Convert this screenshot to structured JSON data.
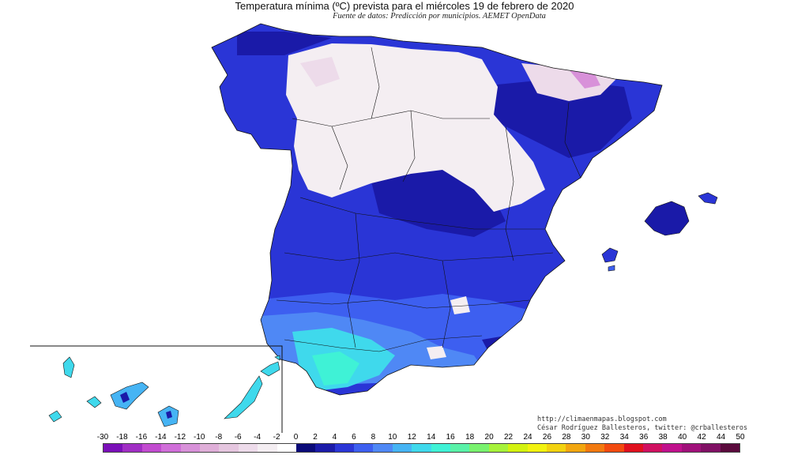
{
  "map": {
    "title": "Temperatura mínima (ºC) prevista para el miércoles 19 de febrero de 2020",
    "subtitle": "Fuente de datos: Predicción por municipios. AEMET OpenData",
    "credits": {
      "url": "http://climaenmapas.blogspot.com",
      "author": "César Rodríguez Ballesteros, twitter: @crballesteros"
    }
  },
  "legend": {
    "labels": [
      "-30",
      "-18",
      "-16",
      "-14",
      "-12",
      "-10",
      "-8",
      "-6",
      "-4",
      "-2",
      "0",
      "2",
      "4",
      "6",
      "8",
      "10",
      "12",
      "14",
      "16",
      "18",
      "20",
      "22",
      "24",
      "26",
      "28",
      "30",
      "32",
      "34",
      "36",
      "38",
      "40",
      "42",
      "44",
      "50"
    ],
    "colors": [
      "#7a0fb8",
      "#a02ec4",
      "#c24bd0",
      "#d06ed9",
      "#d891d9",
      "#dfaed8",
      "#e5c6df",
      "#eddbea",
      "#f4eef2",
      "#ffffff",
      "#0a0a78",
      "#1a1aa8",
      "#2a35d6",
      "#3d5ff0",
      "#4f88f5",
      "#46b4f4",
      "#3fd9ec",
      "#3ff2d6",
      "#59f2a8",
      "#79f26e",
      "#a6f23a",
      "#d3f20f",
      "#f2f20f",
      "#f2d20f",
      "#f2a60f",
      "#f2790f",
      "#f24a0f",
      "#e0101e",
      "#d01060",
      "#c0108c",
      "#a0107a",
      "#801064",
      "#5a0a3c"
    ]
  }
}
